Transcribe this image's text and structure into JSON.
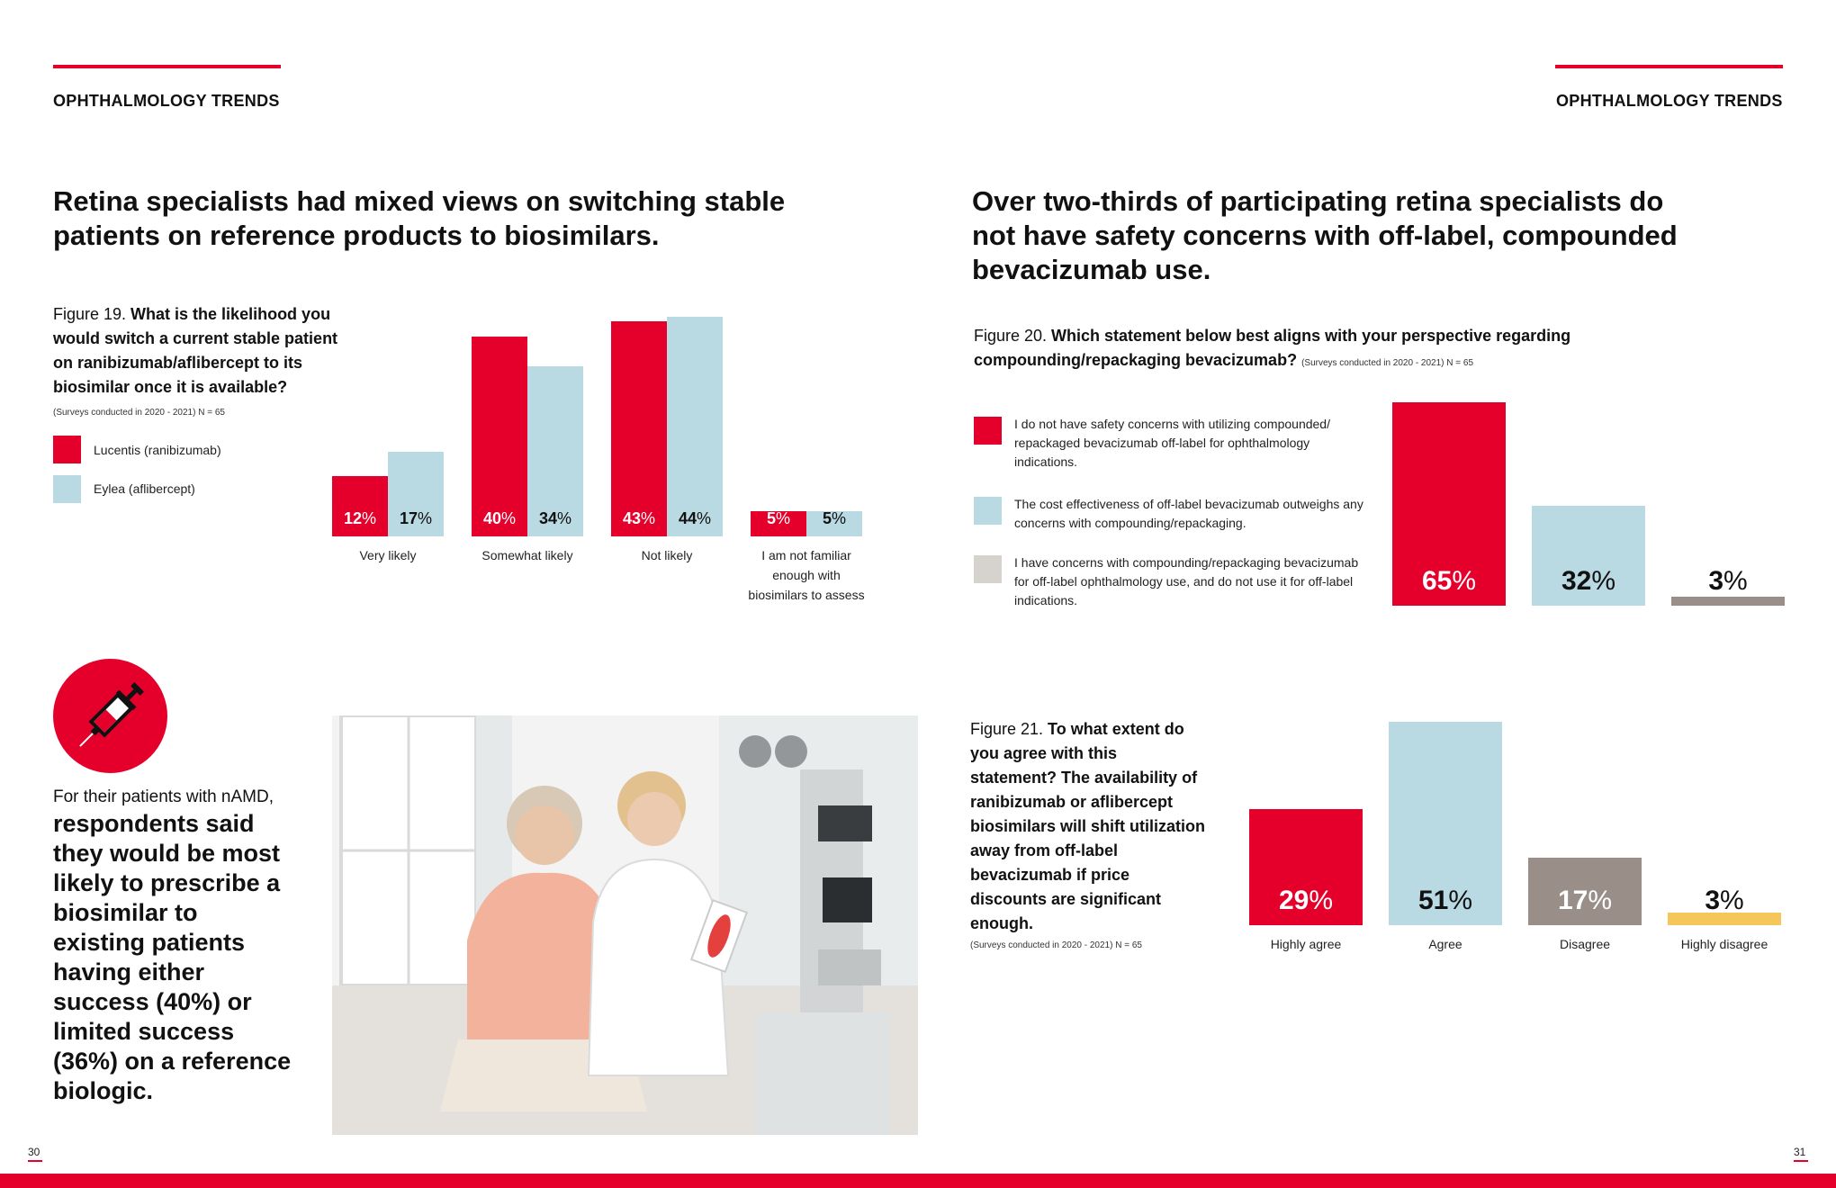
{
  "page_left": {
    "section_label": "OPHTHALMOLOGY TRENDS",
    "headline": "Retina specialists had mixed views on switching stable patients on reference products to biosimilars.",
    "figure19": {
      "prefix": "Figure 19. ",
      "question": "What is the likelihood you would switch a current stable patient on ranibizumab/aflibercept to its biosimilar once it is available?",
      "note": "(Surveys conducted in 2020 - 2021) N = 65"
    },
    "sidebar": {
      "intro": "For their patients with nAMD,",
      "emphasis": "respondents said they would be most likely to prescribe a biosimilar to existing patients having either success (40%) or limited success (36%) on a reference biologic."
    },
    "page_number": "30"
  },
  "page_right": {
    "section_label": "OPHTHALMOLOGY TRENDS",
    "headline": "Over two-thirds of participating retina specialists do not have safety concerns with off-label, compounded bevacizumab use.",
    "figure20": {
      "prefix": "Figure 20. ",
      "question": "Which statement below best aligns with your perspective regarding compounding/repackaging bevacizumab?",
      "note": "(Surveys conducted in 2020 - 2021) N = 65"
    },
    "figure21": {
      "prefix": "Figure 21. ",
      "question": "To what extent do you agree with this statement? The availability of ranibizumab or aflibercept biosimilars will shift utilization away from off-label bevacizumab if price discounts are significant enough.",
      "note": "(Surveys conducted in 2020 - 2021) N = 65"
    },
    "page_number": "31"
  },
  "colors": {
    "red": "#e4002b",
    "light_blue": "#b9d9e3",
    "taupe": "#9a8f88",
    "light_gray": "#d6d2ce",
    "yellow": "#f5c75a"
  },
  "icons": {
    "syringe": "syringe-icon"
  },
  "chart_data": [
    {
      "id": "figure19",
      "type": "bar",
      "categories": [
        "Very likely",
        "Somewhat likely",
        "Not likely",
        "I am not familiar enough with biosimilars to assess"
      ],
      "series": [
        {
          "name": "Lucentis (ranibizumab)",
          "values": [
            12,
            40,
            43,
            5
          ],
          "color": "#e4002b"
        },
        {
          "name": "Eylea (aflibercept)",
          "values": [
            17,
            34,
            44,
            5
          ],
          "color": "#b9d9e3"
        }
      ],
      "unit": "%",
      "ylim": [
        0,
        45
      ]
    },
    {
      "id": "figure20",
      "type": "bar",
      "categories": [
        "I do not have safety concerns with utilizing compounded/ repackaged bevacizumab off-label for ophthalmology indications.",
        "The cost effectiveness of off-label bevacizumab outweighs any concerns with compounding/repackaging.",
        "I have concerns with compounding/repackaging bevacizumab for off-label ophthalmology use, and do not use it for off-label indications."
      ],
      "values": [
        65,
        32,
        3
      ],
      "colors": [
        "#e4002b",
        "#b9d9e3",
        "#9a8f88"
      ],
      "legend_colors": [
        "#e4002b",
        "#b9d9e3",
        "#d6d2ce"
      ],
      "unit": "%",
      "ylim": [
        0,
        65
      ]
    },
    {
      "id": "figure21",
      "type": "bar",
      "categories": [
        "Highly agree",
        "Agree",
        "Disagree",
        "Highly disagree"
      ],
      "values": [
        29,
        51,
        17,
        3
      ],
      "colors": [
        "#e4002b",
        "#b9d9e3",
        "#9a8f88",
        "#f5c75a"
      ],
      "unit": "%",
      "ylim": [
        0,
        51
      ]
    }
  ]
}
